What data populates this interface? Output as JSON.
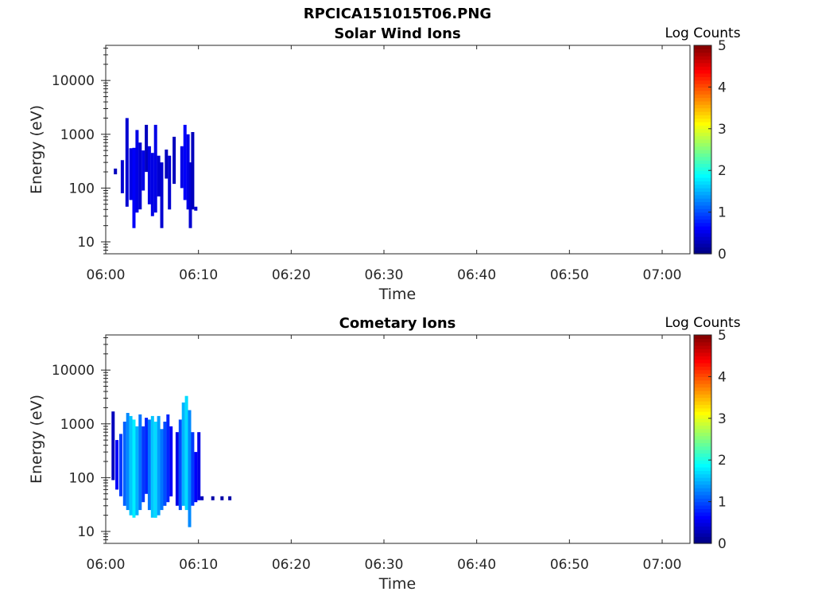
{
  "figure": {
    "title": "RPCICA151015T06.PNG"
  },
  "chart_data": [
    {
      "type": "heatmap",
      "title": "Solar Wind Ions",
      "xlabel": "Time",
      "ylabel": "Energy (eV)",
      "x_ticks": [
        "06:00",
        "06:10",
        "06:20",
        "06:30",
        "06:40",
        "06:50",
        "07:00"
      ],
      "x_range": [
        "06:00",
        "07:03"
      ],
      "y_scale": "log",
      "y_ticks": [
        "10",
        "100",
        "1000",
        "10000"
      ],
      "y_range": [
        6,
        45000
      ],
      "colorbar": {
        "label": "Log Counts",
        "range": [
          0,
          5
        ],
        "ticks": [
          "0",
          "1",
          "2",
          "3",
          "4",
          "5"
        ],
        "colormap": "jet"
      },
      "cells": [
        {
          "t": "06:01:00",
          "e1": 180,
          "e2": 230,
          "v": 0.3
        },
        {
          "t": "06:01:45",
          "e1": 80,
          "e2": 330,
          "v": 0.4
        },
        {
          "t": "06:02:15",
          "e1": 45,
          "e2": 2000,
          "v": 0.4
        },
        {
          "t": "06:02:40",
          "e1": 60,
          "e2": 550,
          "v": 0.5
        },
        {
          "t": "06:03:00",
          "e1": 18,
          "e2": 560,
          "v": 0.6
        },
        {
          "t": "06:03:20",
          "e1": 35,
          "e2": 1200,
          "v": 0.5
        },
        {
          "t": "06:03:40",
          "e1": 40,
          "e2": 700,
          "v": 0.4
        },
        {
          "t": "06:04:00",
          "e1": 90,
          "e2": 500,
          "v": 0.5
        },
        {
          "t": "06:04:20",
          "e1": 200,
          "e2": 1500,
          "v": 0.3
        },
        {
          "t": "06:04:40",
          "e1": 50,
          "e2": 600,
          "v": 0.5
        },
        {
          "t": "06:05:00",
          "e1": 30,
          "e2": 450,
          "v": 0.5
        },
        {
          "t": "06:05:20",
          "e1": 35,
          "e2": 1500,
          "v": 0.5
        },
        {
          "t": "06:05:40",
          "e1": 70,
          "e2": 400,
          "v": 0.4
        },
        {
          "t": "06:06:00",
          "e1": 18,
          "e2": 300,
          "v": 0.4
        },
        {
          "t": "06:06:30",
          "e1": 150,
          "e2": 520,
          "v": 0.3
        },
        {
          "t": "06:06:50",
          "e1": 40,
          "e2": 400,
          "v": 0.4
        },
        {
          "t": "06:07:20",
          "e1": 120,
          "e2": 900,
          "v": 0.3
        },
        {
          "t": "06:08:10",
          "e1": 100,
          "e2": 600,
          "v": 0.5
        },
        {
          "t": "06:08:30",
          "e1": 60,
          "e2": 1500,
          "v": 0.6
        },
        {
          "t": "06:08:50",
          "e1": 40,
          "e2": 1000,
          "v": 0.5
        },
        {
          "t": "06:09:05",
          "e1": 18,
          "e2": 300,
          "v": 0.4
        },
        {
          "t": "06:09:20",
          "e1": 40,
          "e2": 1100,
          "v": 0.3
        },
        {
          "t": "06:09:40",
          "e1": 38,
          "e2": 45,
          "v": 0.4
        }
      ]
    },
    {
      "type": "heatmap",
      "title": "Cometary Ions",
      "xlabel": "Time",
      "ylabel": "Energy (eV)",
      "x_ticks": [
        "06:00",
        "06:10",
        "06:20",
        "06:30",
        "06:40",
        "06:50",
        "07:00"
      ],
      "x_range": [
        "06:00",
        "07:03"
      ],
      "y_scale": "log",
      "y_ticks": [
        "10",
        "100",
        "1000",
        "10000"
      ],
      "y_range": [
        6,
        45000
      ],
      "colorbar": {
        "label": "Log Counts",
        "range": [
          0,
          5
        ],
        "ticks": [
          "0",
          "1",
          "2",
          "3",
          "4",
          "5"
        ],
        "colormap": "jet"
      },
      "cells": [
        {
          "t": "06:00:45",
          "e1": 90,
          "e2": 1700,
          "v": 0.3
        },
        {
          "t": "06:01:10",
          "e1": 60,
          "e2": 500,
          "v": 0.6
        },
        {
          "t": "06:01:35",
          "e1": 45,
          "e2": 650,
          "v": 0.9
        },
        {
          "t": "06:02:00",
          "e1": 30,
          "e2": 1100,
          "v": 1.1
        },
        {
          "t": "06:02:20",
          "e1": 25,
          "e2": 1600,
          "v": 1.3
        },
        {
          "t": "06:02:40",
          "e1": 20,
          "e2": 1400,
          "v": 1.6
        },
        {
          "t": "06:03:00",
          "e1": 18,
          "e2": 1200,
          "v": 1.8
        },
        {
          "t": "06:03:20",
          "e1": 20,
          "e2": 900,
          "v": 1.5
        },
        {
          "t": "06:03:40",
          "e1": 25,
          "e2": 1500,
          "v": 1.2
        },
        {
          "t": "06:04:00",
          "e1": 35,
          "e2": 900,
          "v": 0.9
        },
        {
          "t": "06:04:20",
          "e1": 50,
          "e2": 1300,
          "v": 0.8
        },
        {
          "t": "06:04:40",
          "e1": 25,
          "e2": 1200,
          "v": 1.2
        },
        {
          "t": "06:05:00",
          "e1": 18,
          "e2": 1400,
          "v": 1.6
        },
        {
          "t": "06:05:20",
          "e1": 18,
          "e2": 1100,
          "v": 1.7
        },
        {
          "t": "06:05:40",
          "e1": 20,
          "e2": 1400,
          "v": 1.4
        },
        {
          "t": "06:06:00",
          "e1": 25,
          "e2": 800,
          "v": 1.2
        },
        {
          "t": "06:06:20",
          "e1": 30,
          "e2": 1100,
          "v": 1.0
        },
        {
          "t": "06:06:40",
          "e1": 35,
          "e2": 1500,
          "v": 0.8
        },
        {
          "t": "06:07:00",
          "e1": 45,
          "e2": 900,
          "v": 0.6
        },
        {
          "t": "06:07:40",
          "e1": 30,
          "e2": 700,
          "v": 0.5
        },
        {
          "t": "06:08:00",
          "e1": 25,
          "e2": 1200,
          "v": 1.0
        },
        {
          "t": "06:08:20",
          "e1": 30,
          "e2": 2500,
          "v": 1.5
        },
        {
          "t": "06:08:40",
          "e1": 25,
          "e2": 3300,
          "v": 1.7
        },
        {
          "t": "06:09:00",
          "e1": 12,
          "e2": 1800,
          "v": 1.3
        },
        {
          "t": "06:09:20",
          "e1": 30,
          "e2": 700,
          "v": 0.9
        },
        {
          "t": "06:09:40",
          "e1": 35,
          "e2": 300,
          "v": 0.6
        },
        {
          "t": "06:10:00",
          "e1": 38,
          "e2": 700,
          "v": 0.5
        },
        {
          "t": "06:10:20",
          "e1": 38,
          "e2": 45,
          "v": 0.3
        },
        {
          "t": "06:11:30",
          "e1": 38,
          "e2": 45,
          "v": 0.2
        },
        {
          "t": "06:12:30",
          "e1": 38,
          "e2": 45,
          "v": 0.2
        },
        {
          "t": "06:13:20",
          "e1": 38,
          "e2": 45,
          "v": 0.2
        }
      ]
    }
  ]
}
